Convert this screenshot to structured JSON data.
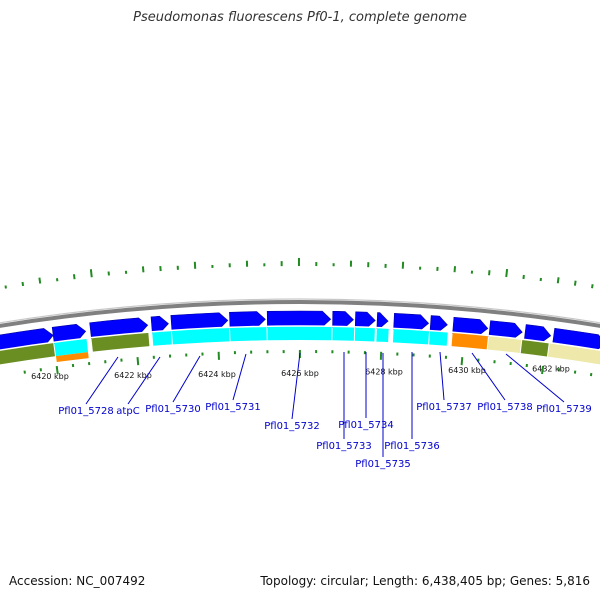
{
  "title": "Pseudomonas fluorescens Pf0-1, complete genome",
  "footer": {
    "accession": "Accession: NC_007492",
    "summary": "Topology: circular; Length: 6,438,405 bp; Genes: 5,816"
  },
  "colors": {
    "gene_forward": "#0000ff",
    "cog_cyan": "#00ffff",
    "cog_olive": "#6b8e23",
    "cog_orange": "#ff8c00",
    "cog_khaki": "#eee8aa",
    "gc_tick": "#228b22",
    "backbone": "#808080",
    "label": "#0000cc"
  },
  "scale_ticks": [
    "6420 kbp",
    "6422 kbp",
    "6424 kbp",
    "6426 kbp",
    "6428 kbp",
    "6430 kbp",
    "6432 kbp"
  ],
  "genes": [
    {
      "label": "Pfl01_5728"
    },
    {
      "label": "atpC"
    },
    {
      "label": "Pfl01_5730"
    },
    {
      "label": "Pfl01_5731"
    },
    {
      "label": "Pfl01_5732"
    },
    {
      "label": "Pfl01_5733"
    },
    {
      "label": "Pfl01_5734"
    },
    {
      "label": "Pfl01_5735"
    },
    {
      "label": "Pfl01_5736"
    },
    {
      "label": "Pfl01_5737"
    },
    {
      "label": "Pfl01_5738"
    },
    {
      "label": "Pfl01_5739"
    }
  ]
}
